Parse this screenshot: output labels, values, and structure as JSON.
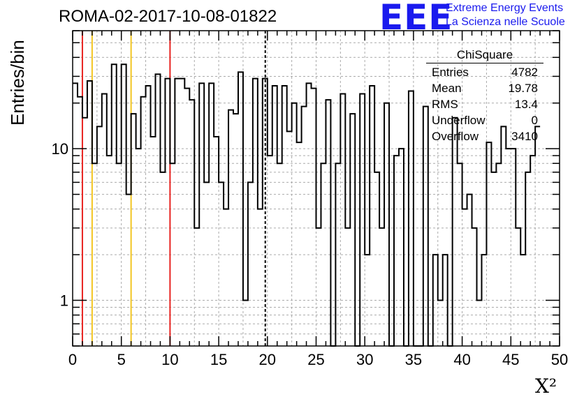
{
  "chart_data": {
    "type": "histogram",
    "title": "ROMA-02-2017-10-08-01822",
    "xlabel": "X²",
    "ylabel": "Entries/bin",
    "xlim": [
      0,
      50
    ],
    "ylim": [
      0.5,
      60
    ],
    "yscale": "log",
    "grid": true,
    "bin_width": 0.5,
    "x_ticks": [
      "0",
      "5",
      "10",
      "15",
      "20",
      "25",
      "30",
      "35",
      "40",
      "45",
      "50"
    ],
    "y_ticks": [
      {
        "value": 1,
        "label": "1"
      },
      {
        "value": 10,
        "label": "10"
      }
    ],
    "values": [
      27,
      22,
      16,
      28,
      8,
      14,
      23,
      9,
      36,
      8,
      36,
      5,
      17,
      10,
      22,
      26,
      12,
      31,
      7,
      29,
      8,
      29,
      29,
      25,
      21,
      3,
      27,
      6,
      27,
      12,
      6,
      4,
      18,
      17,
      32,
      1,
      6,
      29,
      4,
      29,
      9,
      26,
      8,
      26,
      13,
      20,
      11,
      19,
      27,
      25,
      3,
      8,
      21,
      0.4,
      8,
      23,
      3,
      17,
      0.4,
      23,
      2,
      26,
      7,
      3,
      20,
      0.4,
      9,
      10,
      0.4,
      24,
      0.4,
      0.4,
      19,
      0.4,
      2,
      1,
      2,
      0.4,
      16,
      8,
      4,
      5,
      3,
      1,
      2,
      11,
      7,
      8,
      14,
      10,
      10,
      3,
      2,
      7,
      9,
      14
    ],
    "reference_lines": [
      {
        "x": 1,
        "color": "#e8221f",
        "style": "solid"
      },
      {
        "x": 2,
        "color": "#f2c521",
        "style": "solid"
      },
      {
        "x": 6,
        "color": "#f2c521",
        "style": "solid"
      },
      {
        "x": 10,
        "color": "#e8221f",
        "style": "solid"
      },
      {
        "x": 19.78,
        "color": "#000000",
        "style": "dashed"
      }
    ],
    "colors": {
      "line": "#000000",
      "grid": "#aaaaaa",
      "logo": "#1a1aee"
    }
  },
  "logo": {
    "text": "EEE",
    "line1": "Extreme Energy Events",
    "line2": "La Scienza nelle Scuole"
  },
  "stats_box": {
    "title": "ChiSquare",
    "rows": [
      {
        "label": "Entries",
        "value": "4782"
      },
      {
        "label": "Mean",
        "value": "19.78"
      },
      {
        "label": "RMS",
        "value": "13.4"
      },
      {
        "label": "Underflow",
        "value": "0"
      },
      {
        "label": "Overflow",
        "value": "3410"
      }
    ]
  }
}
